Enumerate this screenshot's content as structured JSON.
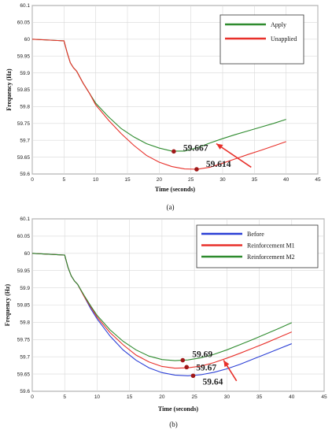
{
  "chart_data": [
    {
      "type": "line",
      "panel_label": "(a)",
      "xlabel": "Time (seconds)",
      "ylabel": "Frequency (Hz)",
      "xlim": [
        0,
        45
      ],
      "ylim": [
        59.6,
        60.1
      ],
      "xticks": [
        0,
        5,
        10,
        15,
        20,
        25,
        30,
        35,
        40,
        45
      ],
      "yticks": [
        59.6,
        59.65,
        59.7,
        59.75,
        59.8,
        59.85,
        59.9,
        59.95,
        60,
        60.05,
        60.1
      ],
      "ytick_labels": [
        "59.6",
        "59.65",
        "59.7",
        "59.75",
        "59.8",
        "59.85",
        "59.9",
        "59.95",
        "60",
        "60.05",
        "60.1"
      ],
      "grid": true,
      "legend_position": "top-right",
      "series": [
        {
          "name": "Apply",
          "color": "#2e8b2e",
          "x": [
            0,
            4,
            5,
            5.5,
            6,
            6.5,
            7,
            8,
            9,
            10,
            12,
            14,
            16,
            18,
            20,
            22,
            24,
            26,
            28,
            30,
            32,
            34,
            36,
            38,
            40
          ],
          "y": [
            60.0,
            59.996,
            59.995,
            59.96,
            59.93,
            59.915,
            59.905,
            59.87,
            59.84,
            59.81,
            59.77,
            59.735,
            59.71,
            59.69,
            59.677,
            59.668,
            59.668,
            59.678,
            59.692,
            59.705,
            59.717,
            59.728,
            59.739,
            59.75,
            59.762
          ]
        },
        {
          "name": "Unapplied",
          "color": "#e8302a",
          "x": [
            0,
            4,
            5,
            5.5,
            6,
            6.5,
            7,
            8,
            9,
            10,
            12,
            14,
            16,
            18,
            20,
            22,
            24,
            26,
            28,
            30,
            32,
            34,
            36,
            38,
            40
          ],
          "y": [
            60.0,
            59.996,
            59.995,
            59.96,
            59.93,
            59.915,
            59.905,
            59.87,
            59.84,
            59.805,
            59.76,
            59.72,
            59.685,
            59.655,
            59.635,
            59.622,
            59.615,
            59.614,
            59.62,
            59.632,
            59.645,
            59.658,
            59.67,
            59.683,
            59.696
          ]
        }
      ],
      "annotations": [
        {
          "text": "59.667",
          "x": 22.3,
          "y": 59.667
        },
        {
          "text": "59.614",
          "x": 25.9,
          "y": 59.614
        }
      ],
      "arrow": {
        "from": [
          34.5,
          59.62
        ],
        "to": [
          29.0,
          59.69
        ],
        "color": "#e8302a"
      }
    },
    {
      "type": "line",
      "panel_label": "(b)",
      "xlabel": "Time (seconds)",
      "ylabel": "Frequency (Hz)",
      "xlim": [
        0,
        45
      ],
      "ylim": [
        59.6,
        60.1
      ],
      "xticks": [
        0,
        5,
        10,
        15,
        20,
        25,
        30,
        35,
        40,
        45
      ],
      "yticks": [
        59.6,
        59.65,
        59.7,
        59.75,
        59.8,
        59.85,
        59.9,
        59.95,
        60,
        60.05,
        60.1
      ],
      "ytick_labels": [
        "59.6",
        "59.65",
        "59.7",
        "59.75",
        "59.8",
        "59.85",
        "59.9",
        "59.95",
        "60",
        "60.05",
        "60.1"
      ],
      "grid": true,
      "legend_position": "top-right",
      "series": [
        {
          "name": "Before",
          "color": "#2b3fd6",
          "x": [
            0,
            4,
            5,
            5.5,
            6,
            6.5,
            7,
            8,
            9,
            10,
            12,
            14,
            16,
            18,
            20,
            22,
            24,
            26,
            28,
            30,
            32,
            34,
            36,
            38,
            40
          ],
          "y": [
            60.0,
            59.996,
            59.995,
            59.96,
            59.935,
            59.92,
            59.91,
            59.875,
            59.84,
            59.81,
            59.76,
            59.72,
            59.69,
            59.668,
            59.654,
            59.647,
            59.645,
            59.648,
            59.655,
            59.665,
            59.678,
            59.693,
            59.708,
            59.723,
            59.738
          ]
        },
        {
          "name": "Reinforcement M1",
          "color": "#e8302a",
          "x": [
            0,
            4,
            5,
            5.5,
            6,
            6.5,
            7,
            8,
            9,
            10,
            12,
            14,
            16,
            18,
            20,
            22,
            24,
            26,
            28,
            30,
            32,
            34,
            36,
            38,
            40
          ],
          "y": [
            60.0,
            59.996,
            59.995,
            59.96,
            59.935,
            59.92,
            59.91,
            59.875,
            59.845,
            59.815,
            59.77,
            59.735,
            59.705,
            59.685,
            59.672,
            59.667,
            59.668,
            59.673,
            59.683,
            59.696,
            59.71,
            59.725,
            59.74,
            59.756,
            59.772
          ]
        },
        {
          "name": "Reinforcement M2",
          "color": "#2e8b2e",
          "x": [
            0,
            4,
            5,
            5.5,
            6,
            6.5,
            7,
            8,
            9,
            10,
            12,
            14,
            16,
            18,
            20,
            22,
            24,
            26,
            28,
            30,
            32,
            34,
            36,
            38,
            40
          ],
          "y": [
            60.0,
            59.996,
            59.995,
            59.96,
            59.935,
            59.92,
            59.91,
            59.878,
            59.848,
            59.82,
            59.778,
            59.745,
            59.72,
            59.702,
            59.692,
            59.689,
            59.691,
            59.697,
            59.707,
            59.72,
            59.735,
            59.75,
            59.766,
            59.782,
            59.799
          ]
        }
      ],
      "annotations": [
        {
          "text": "59.69",
          "x": 23.2,
          "y": 59.69
        },
        {
          "text": "59.67",
          "x": 23.8,
          "y": 59.67
        },
        {
          "text": "59.64",
          "x": 24.8,
          "y": 59.645
        }
      ],
      "arrow": {
        "from": [
          31.5,
          59.63
        ],
        "to": [
          29.5,
          59.69
        ],
        "color": "#e8302a"
      }
    }
  ]
}
